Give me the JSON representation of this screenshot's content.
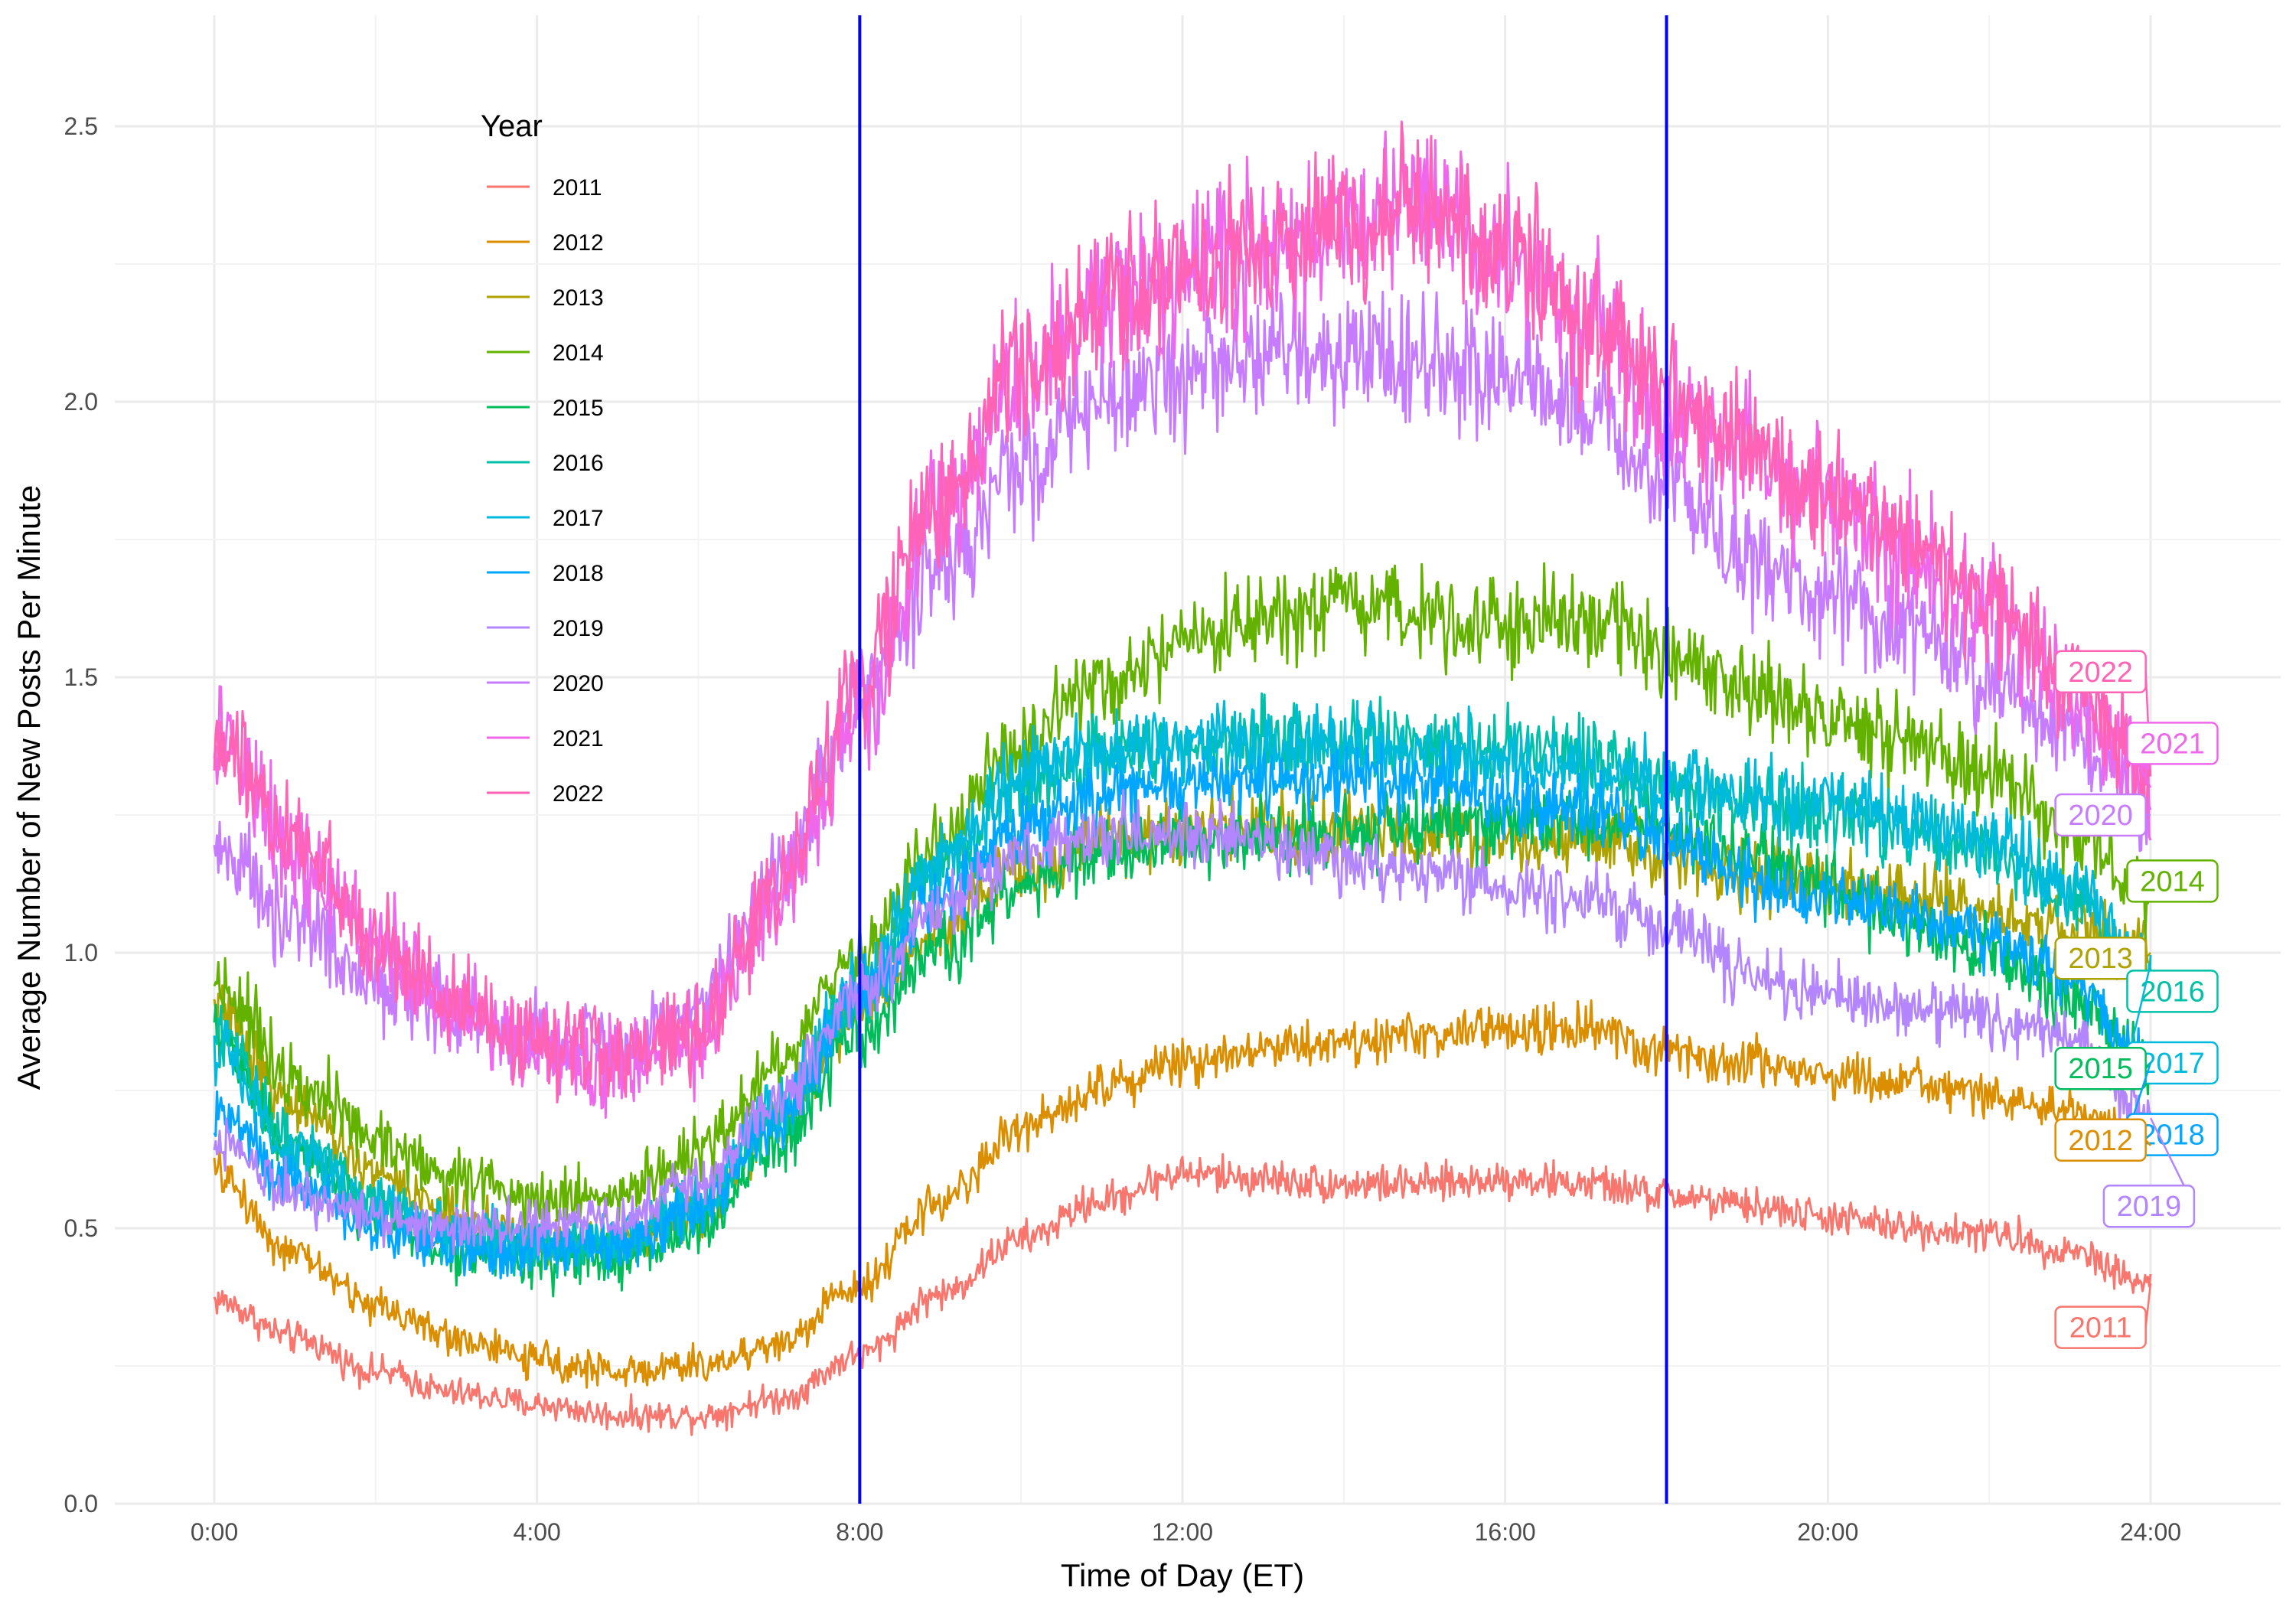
{
  "chart_data": {
    "type": "line",
    "title": "",
    "xlabel": "Time of Day (ET)",
    "ylabel": "Average Number of New Posts Per Minute",
    "xlim": [
      0,
      24
    ],
    "ylim": [
      0,
      2.6
    ],
    "x_unit": "hours",
    "x_ticks": [
      0,
      4,
      8,
      12,
      16,
      20,
      24
    ],
    "x_tick_labels": [
      "0:00",
      "4:00",
      "8:00",
      "12:00",
      "16:00",
      "20:00",
      "24:00"
    ],
    "y_ticks": [
      0,
      0.5,
      1,
      1.5,
      2,
      2.5
    ],
    "y_tick_labels": [
      "0.0",
      "0.5",
      "1.0",
      "1.5",
      "2.0",
      "2.5"
    ],
    "grid": true,
    "vlines": [
      {
        "x": 8,
        "color": "#0000ff"
      },
      {
        "x": 18,
        "color": "#0000ff"
      }
    ],
    "legend": {
      "title": "Year",
      "placement": "top-left"
    },
    "x": [
      0,
      1,
      2,
      3,
      4,
      5,
      6,
      7,
      8,
      9,
      10,
      11,
      12,
      13,
      14,
      15,
      16,
      17,
      18,
      19,
      20,
      21,
      22,
      23,
      24
    ],
    "series": [
      {
        "name": "2011",
        "color": "#F8766D",
        "noise": 0.035,
        "values": [
          0.37,
          0.3,
          0.24,
          0.2,
          0.18,
          0.16,
          0.16,
          0.19,
          0.27,
          0.38,
          0.48,
          0.55,
          0.6,
          0.59,
          0.58,
          0.58,
          0.59,
          0.58,
          0.56,
          0.54,
          0.52,
          0.5,
          0.49,
          0.46,
          0.4
        ]
      },
      {
        "name": "2012",
        "color": "#DB8E00",
        "noise": 0.04,
        "values": [
          0.6,
          0.45,
          0.36,
          0.3,
          0.26,
          0.24,
          0.25,
          0.29,
          0.4,
          0.55,
          0.68,
          0.76,
          0.8,
          0.83,
          0.84,
          0.85,
          0.86,
          0.86,
          0.82,
          0.8,
          0.78,
          0.76,
          0.74,
          0.71,
          0.65
        ]
      },
      {
        "name": "2013",
        "color": "#AEA200",
        "noise": 0.05,
        "values": [
          0.9,
          0.72,
          0.6,
          0.52,
          0.48,
          0.47,
          0.53,
          0.7,
          0.9,
          1.05,
          1.15,
          1.2,
          1.22,
          1.23,
          1.22,
          1.22,
          1.2,
          1.2,
          1.18,
          1.14,
          1.12,
          1.1,
          1.07,
          1.04,
          1.0
        ]
      },
      {
        "name": "2014",
        "color": "#64B200",
        "noise": 0.06,
        "values": [
          0.95,
          0.78,
          0.66,
          0.59,
          0.56,
          0.56,
          0.63,
          0.8,
          1.0,
          1.2,
          1.38,
          1.48,
          1.55,
          1.6,
          1.62,
          1.62,
          1.6,
          1.6,
          1.55,
          1.48,
          1.42,
          1.38,
          1.33,
          1.22,
          1.1
        ]
      },
      {
        "name": "2015",
        "color": "#00BD5C",
        "noise": 0.055,
        "values": [
          0.85,
          0.64,
          0.52,
          0.46,
          0.44,
          0.44,
          0.5,
          0.65,
          0.85,
          1.0,
          1.12,
          1.18,
          1.2,
          1.22,
          1.22,
          1.23,
          1.24,
          1.24,
          1.22,
          1.18,
          1.12,
          1.05,
          1.0,
          0.92,
          0.8
        ]
      },
      {
        "name": "2016",
        "color": "#00C1A7",
        "noise": 0.055,
        "values": [
          0.85,
          0.66,
          0.55,
          0.49,
          0.47,
          0.47,
          0.54,
          0.7,
          0.92,
          1.15,
          1.3,
          1.36,
          1.38,
          1.39,
          1.39,
          1.38,
          1.37,
          1.35,
          1.3,
          1.27,
          1.25,
          1.22,
          1.18,
          1.1,
          0.95
        ]
      },
      {
        "name": "2017",
        "color": "#00BADE",
        "noise": 0.055,
        "values": [
          0.82,
          0.64,
          0.54,
          0.48,
          0.47,
          0.48,
          0.55,
          0.72,
          0.95,
          1.17,
          1.32,
          1.37,
          1.38,
          1.38,
          1.37,
          1.36,
          1.35,
          1.32,
          1.3,
          1.28,
          1.26,
          1.24,
          1.2,
          1.12,
          0.98
        ]
      },
      {
        "name": "2018",
        "color": "#00A6FF",
        "noise": 0.05,
        "values": [
          0.72,
          0.58,
          0.5,
          0.46,
          0.46,
          0.47,
          0.53,
          0.7,
          0.92,
          1.1,
          1.22,
          1.28,
          1.3,
          1.31,
          1.31,
          1.3,
          1.28,
          1.26,
          1.2,
          1.13,
          1.1,
          1.07,
          1.03,
          0.95,
          0.8
        ]
      },
      {
        "name": "2019",
        "color": "#B385FF",
        "noise": 0.05,
        "values": [
          0.66,
          0.57,
          0.52,
          0.5,
          0.5,
          0.52,
          0.58,
          0.73,
          0.93,
          1.08,
          1.18,
          1.22,
          1.22,
          1.2,
          1.17,
          1.14,
          1.12,
          1.1,
          1.05,
          0.96,
          0.92,
          0.9,
          0.88,
          0.85,
          0.7
        ]
      },
      {
        "name": "2020",
        "color": "#C77CFF",
        "noise": 0.07,
        "values": [
          1.18,
          1.05,
          0.95,
          0.88,
          0.84,
          0.83,
          0.9,
          1.15,
          1.45,
          1.7,
          1.88,
          2.0,
          2.05,
          2.08,
          2.08,
          2.08,
          2.04,
          1.98,
          1.86,
          1.72,
          1.65,
          1.58,
          1.5,
          1.4,
          1.25
        ]
      },
      {
        "name": "2021",
        "color": "#EF67EB",
        "noise": 0.08,
        "values": [
          1.38,
          1.18,
          1.02,
          0.9,
          0.83,
          0.8,
          0.85,
          1.1,
          1.45,
          1.8,
          2.05,
          2.18,
          2.24,
          2.28,
          2.32,
          2.36,
          2.28,
          2.15,
          2.0,
          1.9,
          1.82,
          1.74,
          1.62,
          1.48,
          1.3
        ]
      },
      {
        "name": "2022",
        "color": "#FF63B6",
        "noise": 0.075,
        "values": [
          1.4,
          1.2,
          1.03,
          0.91,
          0.84,
          0.81,
          0.86,
          1.12,
          1.48,
          1.82,
          2.05,
          2.17,
          2.23,
          2.28,
          2.32,
          2.35,
          2.28,
          2.14,
          2.02,
          1.92,
          1.84,
          1.75,
          1.63,
          1.5,
          1.32
        ]
      }
    ],
    "end_labels": [
      {
        "series": "2022",
        "text": "2022",
        "x": 23.38,
        "y": 1.51
      },
      {
        "series": "2021",
        "text": "2021",
        "x": 24.27,
        "y": 1.38
      },
      {
        "series": "2020",
        "text": "2020",
        "x": 23.38,
        "y": 1.25
      },
      {
        "series": "2014",
        "text": "2014",
        "x": 24.27,
        "y": 1.13
      },
      {
        "series": "2013",
        "text": "2013",
        "x": 23.38,
        "y": 0.99
      },
      {
        "series": "2016",
        "text": "2016",
        "x": 24.27,
        "y": 0.93
      },
      {
        "series": "2017",
        "text": "2017",
        "x": 24.27,
        "y": 0.8
      },
      {
        "series": "2015",
        "text": "2015",
        "x": 23.38,
        "y": 0.79
      },
      {
        "series": "2018",
        "text": "2018",
        "x": 24.27,
        "y": 0.67
      },
      {
        "series": "2012",
        "text": "2012",
        "x": 23.38,
        "y": 0.66
      },
      {
        "series": "2019",
        "text": "2019",
        "x": 23.98,
        "y": 0.54
      },
      {
        "series": "2011",
        "text": "2011",
        "x": 23.38,
        "y": 0.32
      }
    ]
  }
}
